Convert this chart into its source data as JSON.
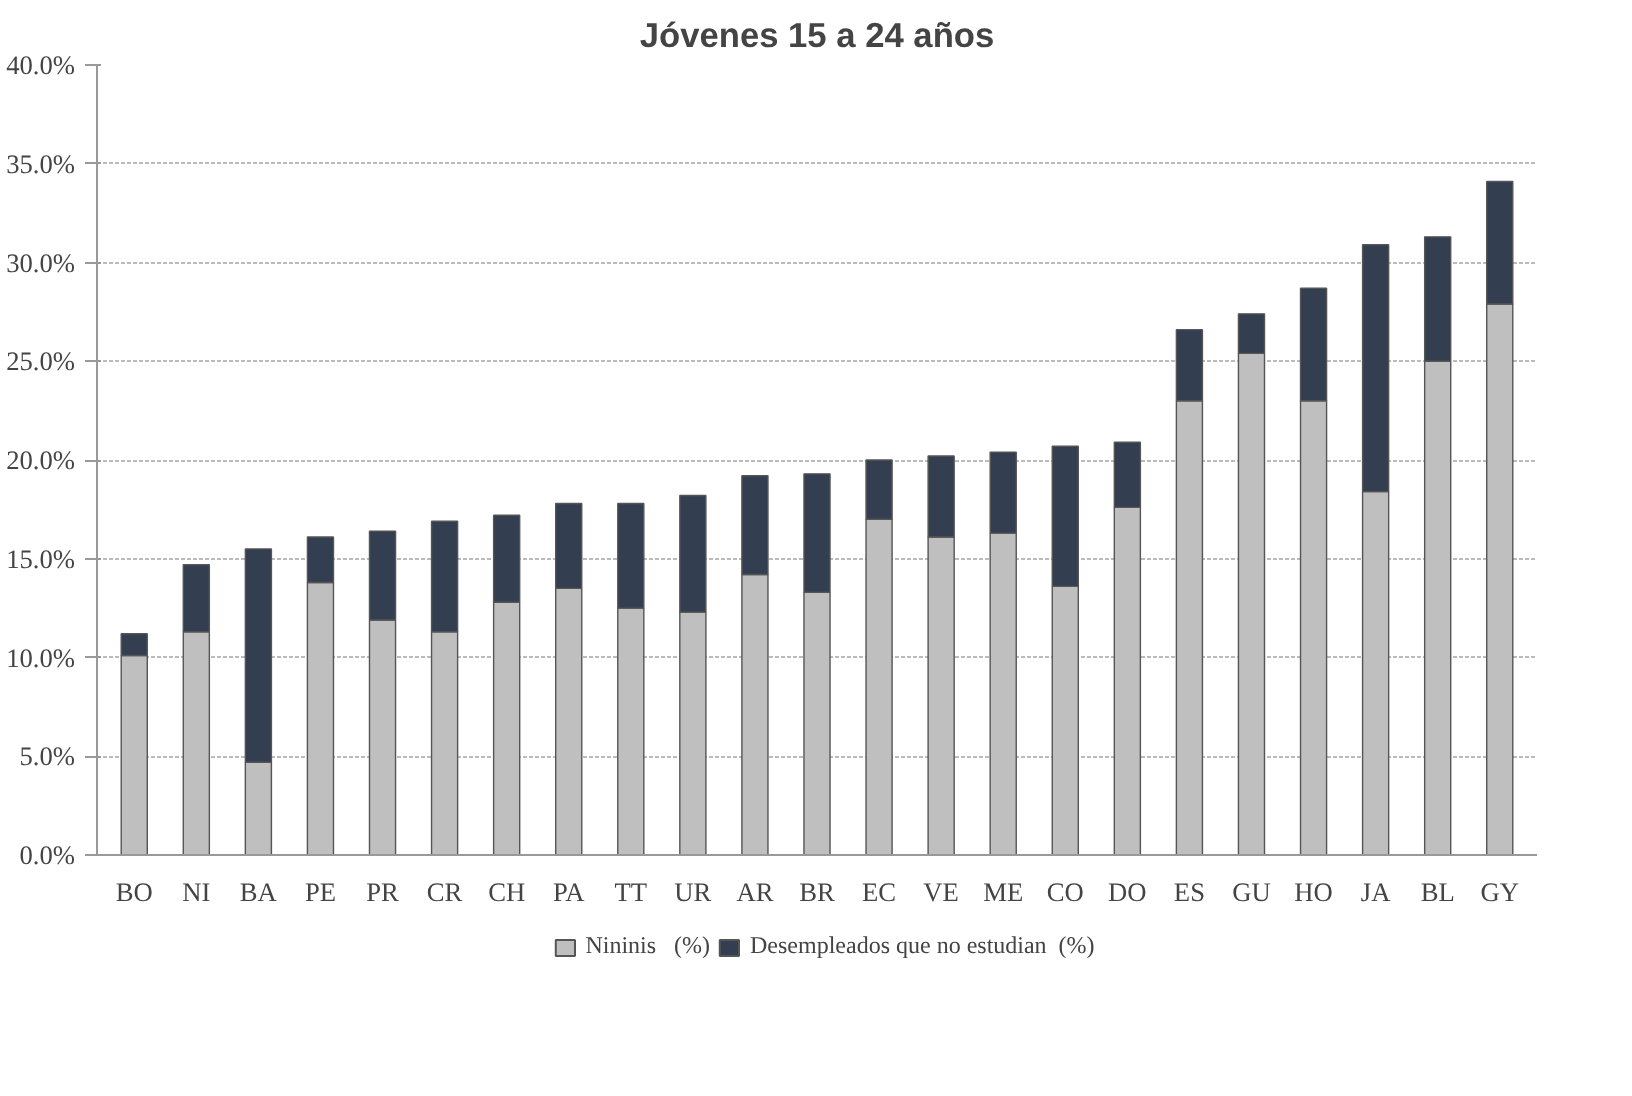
{
  "chart_data": {
    "type": "bar",
    "title": "Jóvenes 15 a 24 años",
    "stacked": true,
    "categories": [
      "BO",
      "NI",
      "BA",
      "PE",
      "PR",
      "CR",
      "CH",
      "PA",
      "TT",
      "UR",
      "AR",
      "BR",
      "EC",
      "VE",
      "ME",
      "CO",
      "DO",
      "ES",
      "GU",
      "HO",
      "JA",
      "BL",
      "GY"
    ],
    "series": [
      {
        "name": "Nininis   (%)",
        "color": "#bfbfbf",
        "values": [
          10.1,
          11.3,
          4.7,
          13.8,
          11.9,
          11.3,
          12.8,
          13.5,
          12.5,
          12.3,
          14.2,
          13.3,
          17.0,
          16.1,
          16.3,
          13.6,
          17.6,
          23.0,
          25.4,
          23.0,
          18.4,
          25.0,
          27.9
        ]
      },
      {
        "name": "Desempleados que no estudian  (%)",
        "color": "#333f50",
        "values": [
          1.1,
          3.4,
          10.8,
          2.3,
          4.5,
          5.6,
          4.4,
          4.3,
          5.3,
          5.9,
          5.0,
          6.0,
          3.0,
          4.1,
          4.1,
          7.1,
          3.3,
          3.6,
          2.0,
          5.7,
          12.5,
          6.3,
          6.2
        ]
      }
    ],
    "ylim": [
      0,
      40
    ],
    "yticks": [
      {
        "value": 0,
        "label": "0.0%"
      },
      {
        "value": 5,
        "label": "5.0%"
      },
      {
        "value": 10,
        "label": "10.0%"
      },
      {
        "value": 15,
        "label": "15.0%"
      },
      {
        "value": 20,
        "label": "20.0%"
      },
      {
        "value": 25,
        "label": "25.0%"
      },
      {
        "value": 30,
        "label": "30.0%"
      },
      {
        "value": 35,
        "label": "35.0%"
      },
      {
        "value": 40,
        "label": "40.0%"
      }
    ],
    "grid": "y",
    "legend": "bottom"
  }
}
